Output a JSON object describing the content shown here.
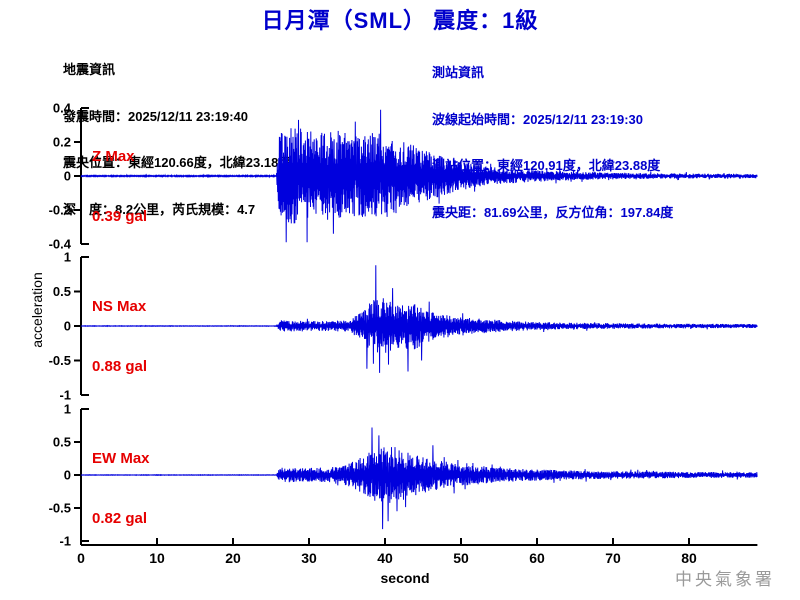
{
  "title": "日月潭（SML） 震度：1級",
  "event_info": {
    "heading": "地震資訊",
    "lines": [
      "發震時間：2025/12/11 23:19:40",
      "震央位置：東經120.66度，北緯23.18度",
      "深　度：8.2公里，芮氏規模：4.7"
    ]
  },
  "station_info": {
    "heading": "測站資訊",
    "lines": [
      "波線起始時間：2025/12/11 23:19:30",
      "測站位置：東經120.91度，北緯23.88度",
      "震央距：81.69公里，反方位角：197.84度"
    ]
  },
  "watermark": "中央氣象署",
  "colors": {
    "title_blue": "#0000cc",
    "info_blue": "#0000cc",
    "trace_blue": "#0000dd",
    "label_red": "#e60000",
    "watermark_gray": "#9a9a9a",
    "axis_black": "#000000"
  },
  "chart_data": {
    "type": "line",
    "title": "日月潭（SML） 震度：1級",
    "xlabel": "second",
    "ylabel": "acceleration",
    "x_ticks": [
      0,
      10,
      20,
      30,
      40,
      50,
      60,
      70,
      80
    ],
    "x_range_seconds": [
      0,
      89
    ],
    "grid": false,
    "legend": "none",
    "trace_color": "#0000dd",
    "panels": [
      {
        "component": "Z",
        "max_label": "Z Max",
        "max_value": "0.39 gal",
        "peak_gal": 0.39,
        "ylim": [
          -0.4,
          0.4
        ],
        "y_ticks": [
          0.4,
          0.2,
          0,
          -0.2,
          -0.4
        ],
        "onset_s": 26,
        "envelope_gal": [
          [
            0,
            0.003
          ],
          [
            25.7,
            0.003
          ],
          [
            26.1,
            0.26
          ],
          [
            28,
            0.28
          ],
          [
            31,
            0.24
          ],
          [
            34,
            0.26
          ],
          [
            37,
            0.23
          ],
          [
            39.5,
            0.25
          ],
          [
            41,
            0.22
          ],
          [
            43,
            0.19
          ],
          [
            45,
            0.15
          ],
          [
            47,
            0.12
          ],
          [
            50,
            0.08
          ],
          [
            53,
            0.055
          ],
          [
            57,
            0.04
          ],
          [
            62,
            0.028
          ],
          [
            68,
            0.02
          ],
          [
            75,
            0.016
          ],
          [
            82,
            0.013
          ],
          [
            89,
            0.012
          ]
        ],
        "spikes_gal": [
          [
            27.0,
            -0.39
          ],
          [
            28.6,
            0.33
          ],
          [
            33.2,
            -0.34
          ],
          [
            36.1,
            0.32
          ],
          [
            39.4,
            0.39
          ]
        ]
      },
      {
        "component": "NS",
        "max_label": "NS Max",
        "max_value": "0.88 gal",
        "peak_gal": 0.88,
        "ylim": [
          -1,
          1
        ],
        "y_ticks": [
          1,
          0.5,
          0,
          -0.5,
          -1
        ],
        "onset_s": 26,
        "envelope_gal": [
          [
            0,
            0.003
          ],
          [
            25.7,
            0.003
          ],
          [
            26.2,
            0.08
          ],
          [
            29,
            0.07
          ],
          [
            33,
            0.07
          ],
          [
            35.5,
            0.09
          ],
          [
            36.8,
            0.2
          ],
          [
            38,
            0.35
          ],
          [
            39,
            0.42
          ],
          [
            40.5,
            0.36
          ],
          [
            42,
            0.32
          ],
          [
            43.5,
            0.35
          ],
          [
            45,
            0.26
          ],
          [
            47,
            0.2
          ],
          [
            49,
            0.15
          ],
          [
            51,
            0.12
          ],
          [
            54,
            0.09
          ],
          [
            57,
            0.07
          ],
          [
            60,
            0.055
          ],
          [
            64,
            0.045
          ],
          [
            70,
            0.04
          ],
          [
            78,
            0.032
          ],
          [
            89,
            0.028
          ]
        ],
        "spikes_gal": [
          [
            37.6,
            -0.62
          ],
          [
            38.8,
            0.88
          ],
          [
            39.3,
            -0.68
          ],
          [
            41.0,
            0.55
          ],
          [
            43.0,
            -0.66
          ],
          [
            44.8,
            -0.5
          ]
        ]
      },
      {
        "component": "EW",
        "max_label": "EW Max",
        "max_value": "0.82 gal",
        "peak_gal": 0.82,
        "ylim": [
          -1,
          1
        ],
        "y_ticks": [
          1,
          0.5,
          0,
          -0.5,
          -1
        ],
        "onset_s": 26,
        "envelope_gal": [
          [
            0,
            0.003
          ],
          [
            25.7,
            0.003
          ],
          [
            26.2,
            0.11
          ],
          [
            29,
            0.1
          ],
          [
            32,
            0.11
          ],
          [
            34,
            0.13
          ],
          [
            36,
            0.2
          ],
          [
            37.5,
            0.3
          ],
          [
            39,
            0.42
          ],
          [
            40.5,
            0.45
          ],
          [
            42,
            0.38
          ],
          [
            43.5,
            0.32
          ],
          [
            45,
            0.27
          ],
          [
            47,
            0.22
          ],
          [
            49,
            0.18
          ],
          [
            51,
            0.15
          ],
          [
            53.5,
            0.12
          ],
          [
            56,
            0.1
          ],
          [
            59,
            0.085
          ],
          [
            63,
            0.07
          ],
          [
            67,
            0.06
          ],
          [
            72,
            0.052
          ],
          [
            80,
            0.045
          ],
          [
            89,
            0.04
          ]
        ],
        "spikes_gal": [
          [
            38.3,
            0.72
          ],
          [
            39.2,
            0.6
          ],
          [
            39.7,
            -0.82
          ],
          [
            40.4,
            -0.7
          ],
          [
            41.6,
            -0.55
          ],
          [
            46.3,
            0.45
          ]
        ]
      }
    ]
  }
}
